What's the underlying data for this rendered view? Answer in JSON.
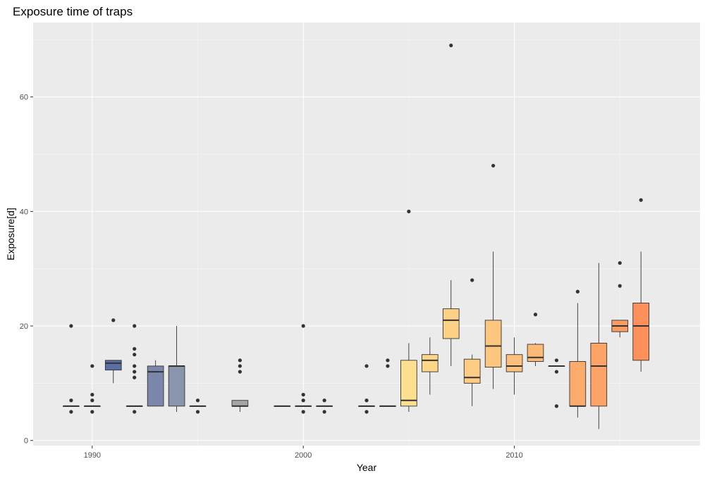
{
  "chart_data": {
    "type": "boxplot",
    "title": "Exposure time of traps",
    "xlabel": "Year",
    "ylabel": "Exposure[d]",
    "xlim": [
      1987.2,
      2018.8
    ],
    "ylim": [
      -0.9,
      73
    ],
    "x_ticks": [
      1990,
      2000,
      2010
    ],
    "x_tick_labels": [
      "1990",
      "2000",
      "2010"
    ],
    "y_ticks": [
      0,
      20,
      40,
      60
    ],
    "y_tick_labels": [
      "0",
      "20",
      "40",
      "60"
    ],
    "grid": true,
    "legend": "none",
    "boxes": [
      {
        "year": 1989,
        "min": 6,
        "q1": 6,
        "median": 6,
        "q3": 6,
        "max": 6,
        "outliers": [
          5,
          7,
          20
        ],
        "color": "#4b5f9c"
      },
      {
        "year": 1990,
        "min": 6,
        "q1": 6,
        "median": 6,
        "q3": 6,
        "max": 6,
        "outliers": [
          5,
          7,
          8,
          13
        ],
        "color": "#5367a0"
      },
      {
        "year": 1991,
        "min": 10,
        "q1": 12.3,
        "median": 13.5,
        "q3": 14,
        "max": 14,
        "outliers": [
          21
        ],
        "color": "#5b6ea3"
      },
      {
        "year": 1992,
        "min": 6,
        "q1": 6,
        "median": 6,
        "q3": 6,
        "max": 6,
        "outliers": [
          5,
          11,
          12,
          13,
          15,
          16,
          20
        ],
        "color": "#6a7aa6"
      },
      {
        "year": 1993,
        "min": 6,
        "q1": 6,
        "median": 12,
        "q3": 13,
        "max": 14,
        "outliers": [],
        "color": "#7b87aa"
      },
      {
        "year": 1994,
        "min": 5,
        "q1": 6,
        "median": 13,
        "q3": 13,
        "max": 20,
        "outliers": [],
        "color": "#8b94ad"
      },
      {
        "year": 1995,
        "min": 6,
        "q1": 6,
        "median": 6,
        "q3": 6,
        "max": 6,
        "outliers": [
          5,
          7
        ],
        "color": "#9aa0af"
      },
      {
        "year": 1997,
        "min": 5,
        "q1": 6,
        "median": 6,
        "q3": 7,
        "max": 7,
        "outliers": [
          12,
          13,
          14
        ],
        "color": "#a6a6a6"
      },
      {
        "year": 1999,
        "min": 6,
        "q1": 6,
        "median": 6,
        "q3": 6,
        "max": 6,
        "outliers": [],
        "color": "#b3ada3"
      },
      {
        "year": 2000,
        "min": 6,
        "q1": 6,
        "median": 6,
        "q3": 6,
        "max": 6,
        "outliers": [
          5,
          7,
          8,
          20
        ],
        "color": "#c2b6a0"
      },
      {
        "year": 2001,
        "min": 6,
        "q1": 6,
        "median": 6,
        "q3": 6,
        "max": 6,
        "outliers": [
          5,
          7
        ],
        "color": "#d1c09c"
      },
      {
        "year": 2003,
        "min": 6,
        "q1": 6,
        "median": 6,
        "q3": 6,
        "max": 6,
        "outliers": [
          5,
          7,
          13
        ],
        "color": "#e7cf95"
      },
      {
        "year": 2004,
        "min": 6,
        "q1": 6,
        "median": 6,
        "q3": 6,
        "max": 6,
        "outliers": [
          13,
          14
        ],
        "color": "#f3d892"
      },
      {
        "year": 2005,
        "min": 5,
        "q1": 6,
        "median": 7,
        "q3": 14,
        "max": 17,
        "outliers": [
          40
        ],
        "color": "#fde08f"
      },
      {
        "year": 2006,
        "min": 8,
        "q1": 12,
        "median": 14,
        "q3": 15,
        "max": 18,
        "outliers": [],
        "color": "#fdd688"
      },
      {
        "year": 2007,
        "min": 13,
        "q1": 17.8,
        "median": 21,
        "q3": 23,
        "max": 28,
        "outliers": [
          69
        ],
        "color": "#fdd185"
      },
      {
        "year": 2008,
        "min": 6,
        "q1": 10,
        "median": 11,
        "q3": 14.2,
        "max": 15,
        "outliers": [
          28
        ],
        "color": "#fdcb82"
      },
      {
        "year": 2009,
        "min": 9,
        "q1": 12.8,
        "median": 16.5,
        "q3": 21,
        "max": 33,
        "outliers": [
          48
        ],
        "color": "#fdc67f"
      },
      {
        "year": 2010,
        "min": 8,
        "q1": 12,
        "median": 13,
        "q3": 15,
        "max": 18,
        "outliers": [],
        "color": "#fdc07c"
      },
      {
        "year": 2011,
        "min": 13,
        "q1": 13.8,
        "median": 14.5,
        "q3": 16.8,
        "max": 17,
        "outliers": [
          22
        ],
        "color": "#fdba77"
      },
      {
        "year": 2012,
        "min": 13,
        "q1": 13,
        "median": 13,
        "q3": 13,
        "max": 13,
        "outliers": [
          6,
          12,
          14
        ],
        "color": "#fcb272"
      },
      {
        "year": 2013,
        "min": 4,
        "q1": 6,
        "median": 6,
        "q3": 13.8,
        "max": 24,
        "outliers": [
          26
        ],
        "color": "#fcab6d"
      },
      {
        "year": 2014,
        "min": 2,
        "q1": 6,
        "median": 13,
        "q3": 17,
        "max": 31,
        "outliers": [],
        "color": "#fca468"
      },
      {
        "year": 2015,
        "min": 18,
        "q1": 19,
        "median": 20,
        "q3": 21,
        "max": 21,
        "outliers": [
          27,
          31
        ],
        "color": "#fc9b62"
      },
      {
        "year": 2016,
        "min": 12,
        "q1": 14,
        "median": 20,
        "q3": 24,
        "max": 33,
        "outliers": [
          42
        ],
        "color": "#fc8f5a"
      }
    ]
  },
  "colors": {
    "panel_background": "#ebebeb",
    "grid_major": "#ffffff",
    "grid_minor": "#f5f5f5",
    "box_outline": "#333333",
    "outlier_fill": "#333333"
  }
}
